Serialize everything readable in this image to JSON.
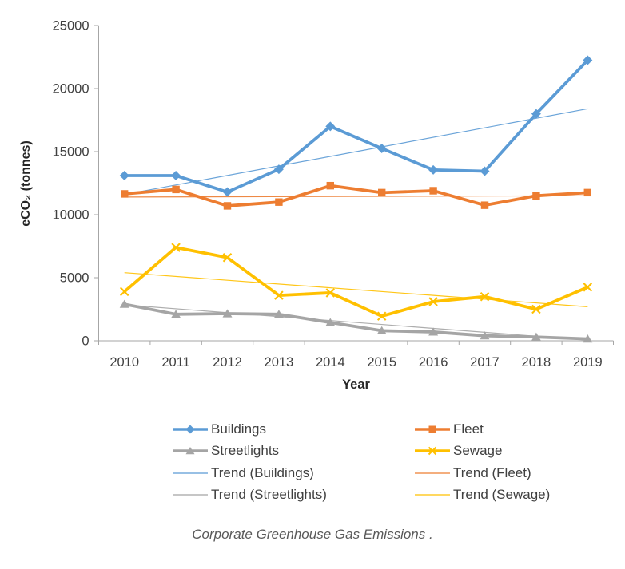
{
  "chart_data": {
    "type": "line",
    "title": "Corporate Greenhouse Gas Emissions .",
    "xlabel": "Year",
    "ylabel": "eCO₂ (tonnes)",
    "ylim": [
      0,
      25000
    ],
    "yticks": [
      0,
      5000,
      10000,
      15000,
      20000,
      25000
    ],
    "grid": false,
    "legend_position": "bottom-two-columns",
    "categories": [
      "2010",
      "2011",
      "2012",
      "2013",
      "2014",
      "2015",
      "2016",
      "2017",
      "2018",
      "2019"
    ],
    "series": [
      {
        "name": "Buildings",
        "color": "#5B9BD5",
        "marker": "diamond",
        "values": [
          13100,
          13100,
          11800,
          13600,
          17000,
          15250,
          13550,
          13450,
          18000,
          22250
        ]
      },
      {
        "name": "Fleet",
        "color": "#ED7D31",
        "marker": "square",
        "values": [
          11650,
          12000,
          10700,
          11000,
          12300,
          11750,
          11900,
          10750,
          11500,
          11750
        ]
      },
      {
        "name": "Streetlights",
        "color": "#A5A5A5",
        "marker": "triangle",
        "values": [
          2900,
          2100,
          2150,
          2100,
          1450,
          800,
          700,
          400,
          300,
          150
        ]
      },
      {
        "name": "Sewage",
        "color": "#FFC000",
        "marker": "x",
        "values": [
          3900,
          7400,
          6600,
          3600,
          3800,
          1950,
          3100,
          3500,
          2500,
          4250
        ]
      }
    ],
    "trendlines": [
      {
        "name": "Trend (Buildings)",
        "color": "#5B9BD5",
        "value_2010": 11600,
        "value_2019": 18400
      },
      {
        "name": "Trend (Fleet)",
        "color": "#ED7D31",
        "value_2010": 11400,
        "value_2019": 11500
      },
      {
        "name": "Trend (Streetlights)",
        "color": "#A5A5A5",
        "value_2010": 2850,
        "value_2019": 50
      },
      {
        "name": "Trend (Sewage)",
        "color": "#FFC000",
        "value_2010": 5400,
        "value_2019": 2700
      }
    ],
    "legend_entries": [
      {
        "label": "Buildings",
        "color": "#5B9BD5",
        "kind": "series",
        "marker": "diamond"
      },
      {
        "label": "Fleet",
        "color": "#ED7D31",
        "kind": "series",
        "marker": "square"
      },
      {
        "label": "Streetlights",
        "color": "#A5A5A5",
        "kind": "series",
        "marker": "triangle"
      },
      {
        "label": "Sewage",
        "color": "#FFC000",
        "kind": "series",
        "marker": "x"
      },
      {
        "label": "Trend (Buildings)",
        "color": "#5B9BD5",
        "kind": "trend"
      },
      {
        "label": "Trend (Fleet)",
        "color": "#ED7D31",
        "kind": "trend"
      },
      {
        "label": "Trend (Streetlights)",
        "color": "#A5A5A5",
        "kind": "trend"
      },
      {
        "label": "Trend (Sewage)",
        "color": "#FFC000",
        "kind": "trend"
      }
    ],
    "axis_color": "#A6A6A6",
    "tick_label_color": "#404040"
  }
}
